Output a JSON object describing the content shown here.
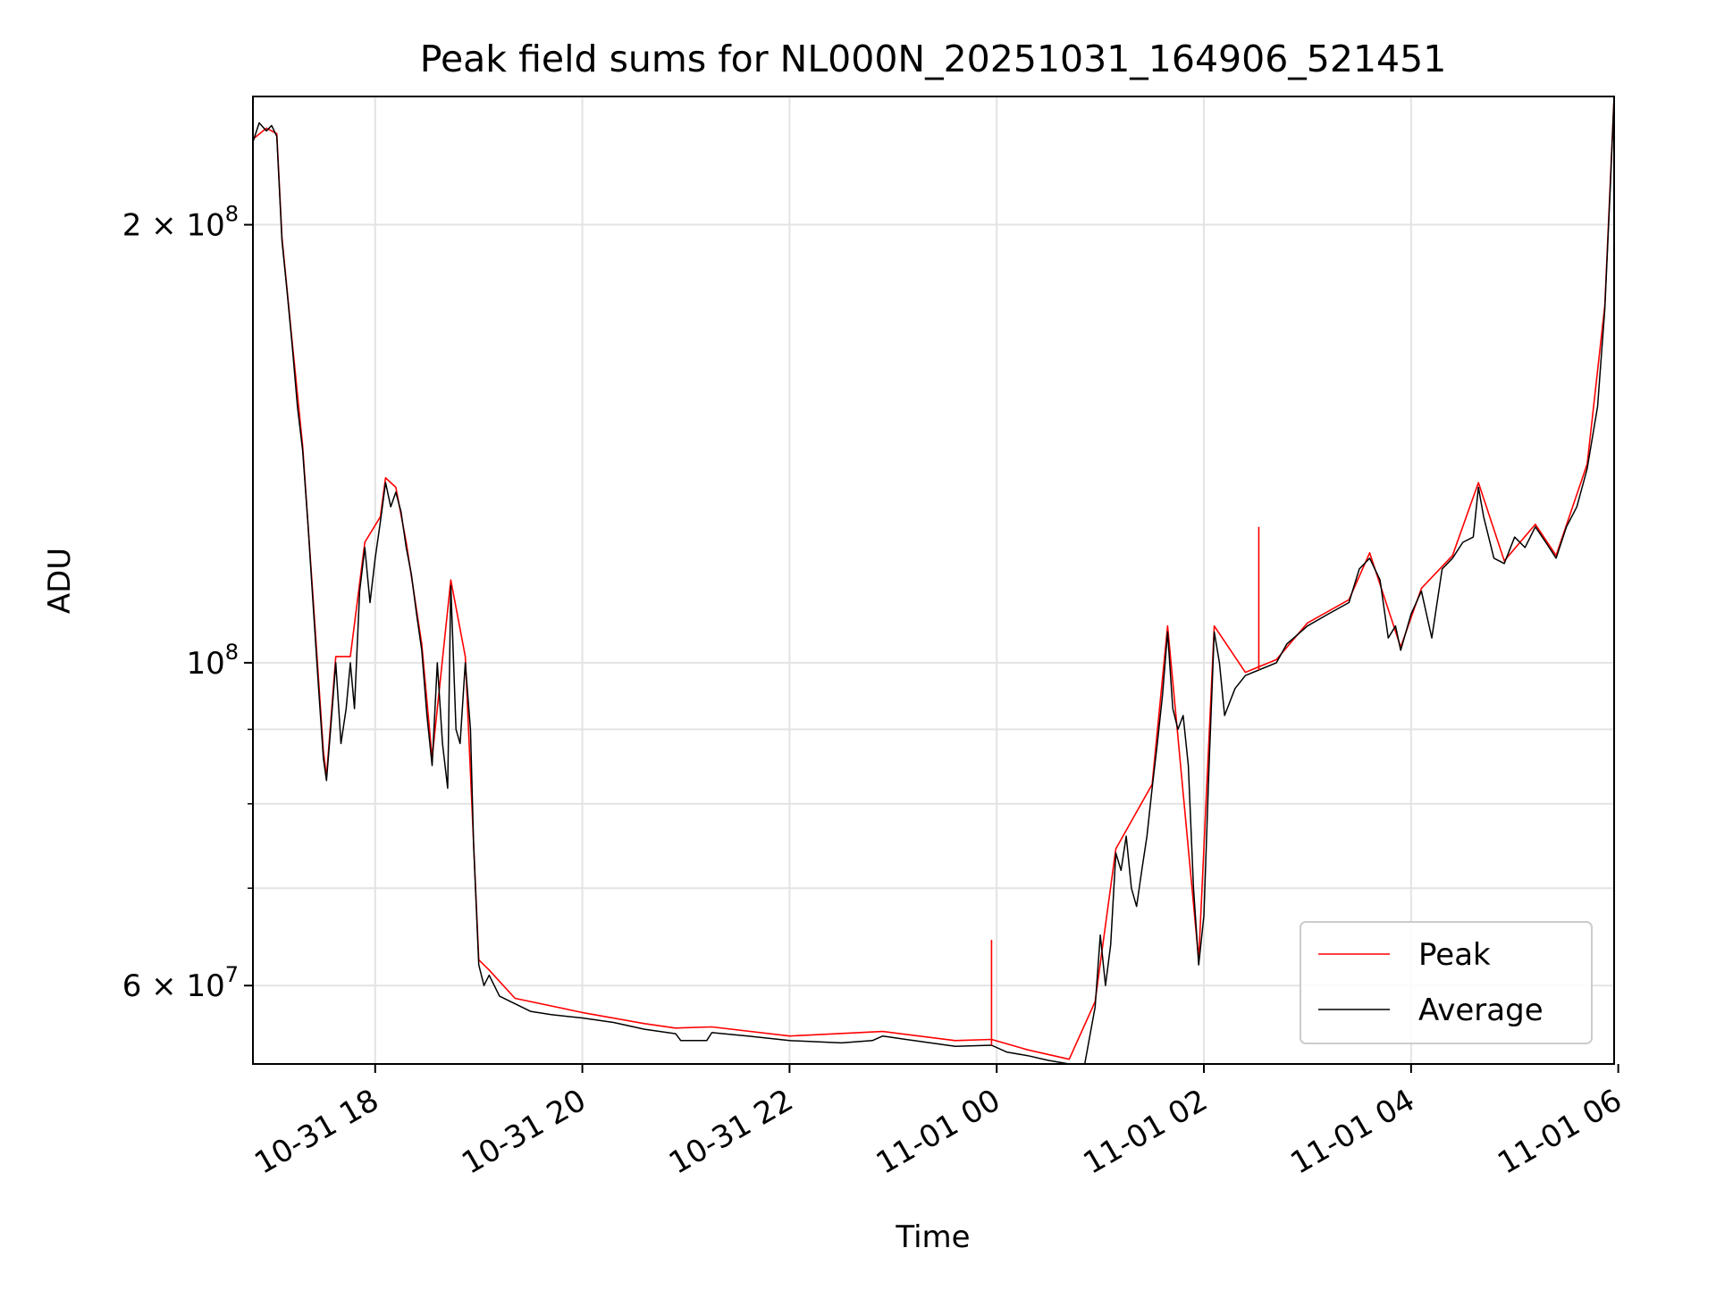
{
  "chart_data": {
    "type": "line",
    "title": "Peak field sums for NL000N_20251031_164906_521451",
    "xlabel": "Time",
    "ylabel": "ADU",
    "yscale": "log",
    "grid": true,
    "legend_location": "lower-right",
    "x_unit": "hours since 2025-10-31 00:00",
    "xlim": [
      16.82,
      29.96
    ],
    "ylim": [
      53000000,
      245000000
    ],
    "x_ticks": [
      {
        "value": 18,
        "label": "10-31 18"
      },
      {
        "value": 20,
        "label": "10-31 20"
      },
      {
        "value": 22,
        "label": "10-31 22"
      },
      {
        "value": 24,
        "label": "11-01 00"
      },
      {
        "value": 26,
        "label": "11-01 02"
      },
      {
        "value": 28,
        "label": "11-01 04"
      },
      {
        "value": 30,
        "label": "11-01 06"
      }
    ],
    "y_major_ticks": [
      {
        "value": 60000000,
        "base": "6 × 10",
        "exp": "7"
      },
      {
        "value": 100000000,
        "base": "10",
        "exp": "8"
      },
      {
        "value": 200000000,
        "base": "2 × 10",
        "exp": "8"
      }
    ],
    "y_minor_ticks": [
      70000000,
      80000000,
      90000000
    ],
    "legend": [
      {
        "name": "Peak",
        "color": "#ff0000"
      },
      {
        "name": "Average",
        "color": "#000000"
      }
    ],
    "series": [
      {
        "name": "Average",
        "color": "#000000",
        "points": [
          [
            16.82,
            228000000
          ],
          [
            16.88,
            235000000
          ],
          [
            16.95,
            232000000
          ],
          [
            17.0,
            234000000
          ],
          [
            17.05,
            230000000
          ],
          [
            17.1,
            195000000
          ],
          [
            17.15,
            180000000
          ],
          [
            17.2,
            165000000
          ],
          [
            17.25,
            150000000
          ],
          [
            17.3,
            140000000
          ],
          [
            17.35,
            125000000
          ],
          [
            17.4,
            110000000
          ],
          [
            17.45,
            97000000
          ],
          [
            17.5,
            86000000
          ],
          [
            17.53,
            83000000
          ],
          [
            17.57,
            90000000
          ],
          [
            17.62,
            100000000
          ],
          [
            17.67,
            88000000
          ],
          [
            17.72,
            93000000
          ],
          [
            17.76,
            100000000
          ],
          [
            17.8,
            93000000
          ],
          [
            17.85,
            112000000
          ],
          [
            17.9,
            120000000
          ],
          [
            17.95,
            110000000
          ],
          [
            18.0,
            118000000
          ],
          [
            18.05,
            125000000
          ],
          [
            18.1,
            133000000
          ],
          [
            18.15,
            128000000
          ],
          [
            18.2,
            131000000
          ],
          [
            18.25,
            127000000
          ],
          [
            18.3,
            120000000
          ],
          [
            18.35,
            115000000
          ],
          [
            18.4,
            108000000
          ],
          [
            18.45,
            102000000
          ],
          [
            18.5,
            92000000
          ],
          [
            18.55,
            85000000
          ],
          [
            18.6,
            100000000
          ],
          [
            18.65,
            88000000
          ],
          [
            18.7,
            82000000
          ],
          [
            18.73,
            113000000
          ],
          [
            18.78,
            90000000
          ],
          [
            18.82,
            88000000
          ],
          [
            18.87,
            100000000
          ],
          [
            18.92,
            90000000
          ],
          [
            18.95,
            75000000
          ],
          [
            19.0,
            62000000
          ],
          [
            19.05,
            60000000
          ],
          [
            19.1,
            61000000
          ],
          [
            19.2,
            59000000
          ],
          [
            19.35,
            58300000
          ],
          [
            19.5,
            57600000
          ],
          [
            19.7,
            57300000
          ],
          [
            20.0,
            57000000
          ],
          [
            20.3,
            56600000
          ],
          [
            20.6,
            56000000
          ],
          [
            20.9,
            55600000
          ],
          [
            20.95,
            55000000
          ],
          [
            21.2,
            55000000
          ],
          [
            21.25,
            55700000
          ],
          [
            21.6,
            55400000
          ],
          [
            22.0,
            55000000
          ],
          [
            22.5,
            54800000
          ],
          [
            22.8,
            55000000
          ],
          [
            22.9,
            55400000
          ],
          [
            23.2,
            55000000
          ],
          [
            23.6,
            54500000
          ],
          [
            23.95,
            54600000
          ],
          [
            24.1,
            54000000
          ],
          [
            24.3,
            53700000
          ],
          [
            24.5,
            53300000
          ],
          [
            24.7,
            53000000
          ],
          [
            24.85,
            53000000
          ],
          [
            24.95,
            58000000
          ],
          [
            25.0,
            65000000
          ],
          [
            25.05,
            60000000
          ],
          [
            25.1,
            64000000
          ],
          [
            25.15,
            74000000
          ],
          [
            25.2,
            72000000
          ],
          [
            25.25,
            76000000
          ],
          [
            25.3,
            70000000
          ],
          [
            25.35,
            68000000
          ],
          [
            25.4,
            72000000
          ],
          [
            25.45,
            76000000
          ],
          [
            25.5,
            82000000
          ],
          [
            25.55,
            88000000
          ],
          [
            25.6,
            95000000
          ],
          [
            25.65,
            105000000
          ],
          [
            25.7,
            93000000
          ],
          [
            25.75,
            90000000
          ],
          [
            25.8,
            92000000
          ],
          [
            25.85,
            85000000
          ],
          [
            25.9,
            70000000
          ],
          [
            25.95,
            62000000
          ],
          [
            26.0,
            67000000
          ],
          [
            26.05,
            85000000
          ],
          [
            26.1,
            105000000
          ],
          [
            26.15,
            100000000
          ],
          [
            26.2,
            92000000
          ],
          [
            26.3,
            96000000
          ],
          [
            26.4,
            98000000
          ],
          [
            26.55,
            99000000
          ],
          [
            26.7,
            100000000
          ],
          [
            26.8,
            103000000
          ],
          [
            27.0,
            106000000
          ],
          [
            27.2,
            108000000
          ],
          [
            27.4,
            110000000
          ],
          [
            27.5,
            116000000
          ],
          [
            27.6,
            118000000
          ],
          [
            27.7,
            114000000
          ],
          [
            27.78,
            104000000
          ],
          [
            27.85,
            106000000
          ],
          [
            27.9,
            102000000
          ],
          [
            28.0,
            108000000
          ],
          [
            28.1,
            112000000
          ],
          [
            28.2,
            104000000
          ],
          [
            28.3,
            116000000
          ],
          [
            28.4,
            118000000
          ],
          [
            28.5,
            121000000
          ],
          [
            28.6,
            122000000
          ],
          [
            28.65,
            132000000
          ],
          [
            28.7,
            126000000
          ],
          [
            28.8,
            118000000
          ],
          [
            28.9,
            117000000
          ],
          [
            29.0,
            122000000
          ],
          [
            29.1,
            120000000
          ],
          [
            29.2,
            124000000
          ],
          [
            29.3,
            121000000
          ],
          [
            29.4,
            118000000
          ],
          [
            29.5,
            124000000
          ],
          [
            29.6,
            128000000
          ],
          [
            29.7,
            136000000
          ],
          [
            29.8,
            150000000
          ],
          [
            29.87,
            175000000
          ],
          [
            29.92,
            210000000
          ],
          [
            29.96,
            245000000
          ]
        ]
      },
      {
        "name": "Peak",
        "color": "#ff0000",
        "points": [
          [
            16.82,
            229000000
          ],
          [
            16.95,
            233000000
          ],
          [
            17.05,
            231000000
          ],
          [
            17.1,
            196000000
          ],
          [
            17.2,
            166000000
          ],
          [
            17.3,
            141000000
          ],
          [
            17.4,
            111000000
          ],
          [
            17.5,
            87000000
          ],
          [
            17.53,
            83500000
          ],
          [
            17.62,
            101000000
          ],
          [
            17.76,
            101000000
          ],
          [
            17.9,
            121000000
          ],
          [
            18.05,
            126000000
          ],
          [
            18.1,
            134000000
          ],
          [
            18.2,
            132000000
          ],
          [
            18.3,
            121000000
          ],
          [
            18.45,
            103000000
          ],
          [
            18.55,
            86000000
          ],
          [
            18.73,
            114000000
          ],
          [
            18.87,
            101000000
          ],
          [
            19.0,
            62500000
          ],
          [
            19.1,
            61500000
          ],
          [
            19.35,
            58800000
          ],
          [
            20.0,
            57500000
          ],
          [
            20.6,
            56500000
          ],
          [
            20.9,
            56100000
          ],
          [
            21.25,
            56200000
          ],
          [
            22.0,
            55400000
          ],
          [
            22.9,
            55800000
          ],
          [
            23.6,
            55000000
          ],
          [
            23.95,
            55100000
          ],
          [
            24.3,
            54200000
          ],
          [
            24.7,
            53400000
          ],
          [
            24.95,
            58500000
          ],
          [
            25.15,
            74500000
          ],
          [
            25.5,
            82500000
          ],
          [
            25.65,
            106000000
          ],
          [
            25.95,
            62500000
          ],
          [
            26.1,
            106000000
          ],
          [
            26.4,
            98500000
          ],
          [
            26.7,
            100500000
          ],
          [
            27.0,
            106500000
          ],
          [
            27.4,
            110500000
          ],
          [
            27.6,
            119000000
          ],
          [
            27.9,
            102500000
          ],
          [
            28.1,
            112500000
          ],
          [
            28.4,
            118500000
          ],
          [
            28.65,
            133000000
          ],
          [
            28.9,
            117500000
          ],
          [
            29.2,
            124500000
          ],
          [
            29.4,
            118500000
          ],
          [
            29.7,
            137000000
          ],
          [
            29.87,
            176000000
          ],
          [
            29.96,
            245000000
          ]
        ]
      }
    ],
    "spikes": [
      {
        "series": "Peak",
        "x": 23.95,
        "y": 64500000
      },
      {
        "series": "Peak",
        "x": 26.53,
        "y": 124000000
      }
    ]
  }
}
